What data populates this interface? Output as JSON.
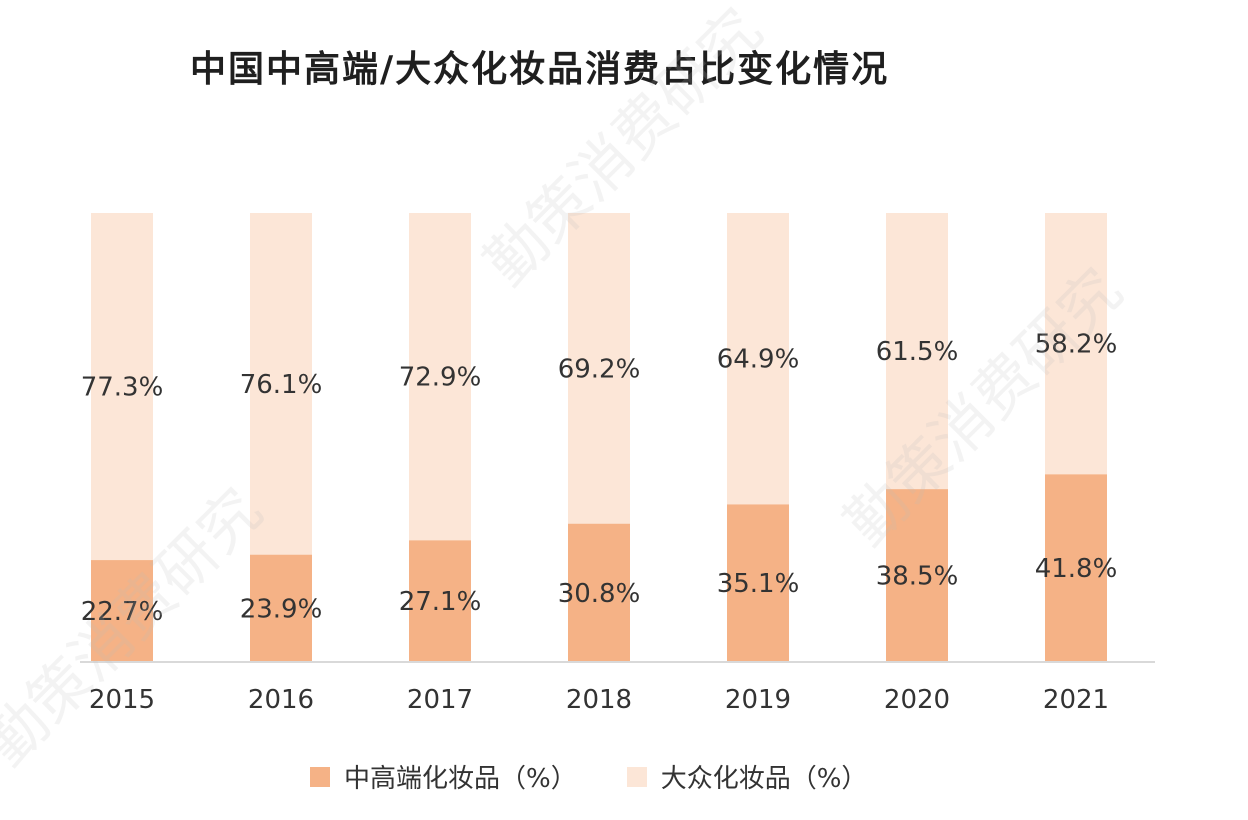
{
  "chart_data": {
    "type": "bar",
    "stacked": true,
    "title": "中国中高端/大众化妆品消费占比变化情况",
    "categories": [
      "2015",
      "2016",
      "2017",
      "2018",
      "2019",
      "2020",
      "2021"
    ],
    "series": [
      {
        "name": "中高端化妆品（%）",
        "color": "#f5b286",
        "values": [
          22.7,
          23.9,
          27.1,
          30.8,
          35.1,
          38.5,
          41.8
        ],
        "labels": [
          "22.7%",
          "23.9%",
          "27.1%",
          "30.8%",
          "35.1%",
          "38.5%",
          "41.8%"
        ]
      },
      {
        "name": "大众化妆品（%）",
        "color": "#fce6d7",
        "values": [
          77.3,
          76.1,
          72.9,
          69.2,
          64.9,
          61.5,
          58.2
        ],
        "labels": [
          "77.3%",
          "76.1%",
          "72.9%",
          "69.2%",
          "64.9%",
          "61.5%",
          "58.2%"
        ]
      }
    ],
    "ylim": [
      0,
      100
    ],
    "xlabel": "",
    "ylabel": "",
    "grid": false,
    "legend_position": "bottom"
  }
}
